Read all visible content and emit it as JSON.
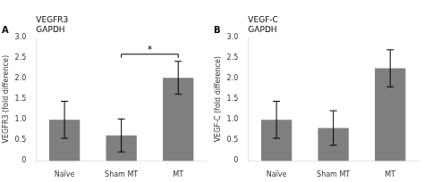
{
  "chart_data": [
    {
      "type": "bar",
      "title": "A",
      "categories": [
        "Naïve",
        "Sham MT",
        "MT"
      ],
      "values": [
        1.0,
        0.62,
        2.02
      ],
      "errors": [
        0.45,
        0.4,
        0.4
      ],
      "color": "#7f7f7f",
      "ylabel": "VEGFR3 (fold difference)",
      "ylim": [
        0,
        3.0
      ],
      "yticks": [
        0,
        0.5,
        {
          "value": 1.0,
          "label": "1.0"
        },
        1.5,
        {
          "value": 2.0,
          "label": "2.0"
        },
        2.5,
        {
          "value": 3.0,
          "label": "3.0"
        }
      ],
      "grid": false,
      "annotations": [
        {
          "text": "VEGFR3"
        },
        {
          "text": "GAPDH"
        },
        {
          "text": "*",
          "x": [
            "Sham MT",
            "MT"
          ]
        }
      ]
    },
    {
      "type": "bar",
      "title": "B",
      "categories": [
        "Naïve",
        "Sham MT",
        "MT"
      ],
      "values": [
        1.0,
        0.8,
        2.25
      ],
      "errors": [
        0.45,
        0.42,
        0.45
      ],
      "color": "#7f7f7f",
      "ylabel": "VEGF-C (fold difference)",
      "ylim": [
        0,
        3.0
      ],
      "yticks": [
        0,
        0.5,
        {
          "value": 1.0,
          "label": "1.0"
        },
        1.5,
        {
          "value": 2.0,
          "label": "2.0"
        },
        2.5,
        {
          "value": 3.0,
          "label": "3.0"
        }
      ],
      "grid": false,
      "annotations": [
        {
          "text": "VEGF-C"
        },
        {
          "text": "GAPDH"
        }
      ]
    }
  ]
}
